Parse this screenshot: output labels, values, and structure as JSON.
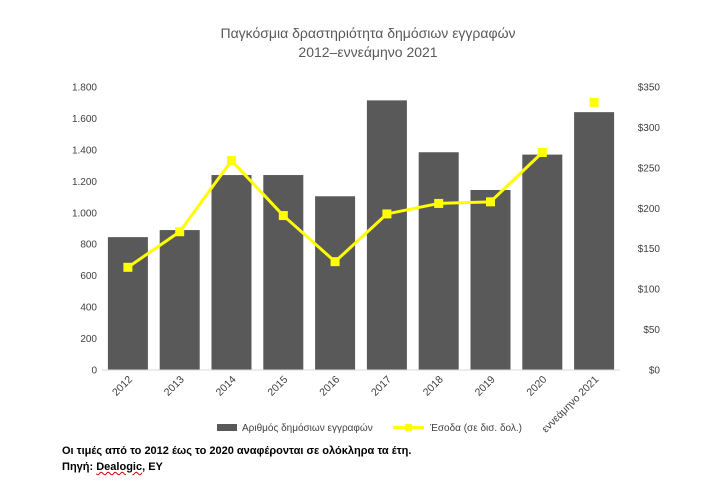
{
  "chart_data": {
    "type": "bar",
    "title": [
      "Παγκόσμια δραστηριότητα δημόσιων εγγραφών",
      "2012–εννεάμηνο 2021"
    ],
    "categories": [
      "2012",
      "2013",
      "2014",
      "2015",
      "2016",
      "2017",
      "2018",
      "2019",
      "2020",
      "εννεάμηνο 2021"
    ],
    "series": [
      {
        "name": "Αριθμός δημόσιων εγγραφών",
        "type": "bar",
        "axis": "left",
        "color": "#595959",
        "values": [
          845,
          890,
          1240,
          1240,
          1105,
          1715,
          1385,
          1145,
          1370,
          1640
        ]
      },
      {
        "name": "Έσοδα (σε δισ. δολ.)",
        "type": "line",
        "axis": "right",
        "color": "#ffff00",
        "values": [
          127,
          171,
          259,
          191,
          134,
          193,
          206,
          208,
          269,
          331
        ],
        "connected_points": 9
      }
    ],
    "y_left": {
      "ylim": [
        0,
        1800
      ],
      "ticks": [
        0,
        200,
        400,
        600,
        800,
        1000,
        1200,
        1400,
        1600,
        1800
      ],
      "tick_labels": [
        "0",
        "200",
        "400",
        "600",
        "800",
        "1.000",
        "1.200",
        "1.400",
        "1.600",
        "1.800"
      ]
    },
    "y_right": {
      "ylim": [
        0,
        350
      ],
      "ticks": [
        0,
        50,
        100,
        150,
        200,
        250,
        300,
        350
      ],
      "tick_labels": [
        "$0",
        "$50",
        "$100",
        "$150",
        "$200",
        "$250",
        "$300",
        "$350"
      ]
    },
    "grid": false,
    "legend": "bottom"
  },
  "footnote": {
    "line1": "Οι τιμές από το 2012 έως το 2020 αναφέρονται σε ολόκληρα τα έτη.",
    "line2_prefix": "Πηγή: ",
    "line2_source": "Dealogic",
    "line2_suffix": ", EY"
  }
}
